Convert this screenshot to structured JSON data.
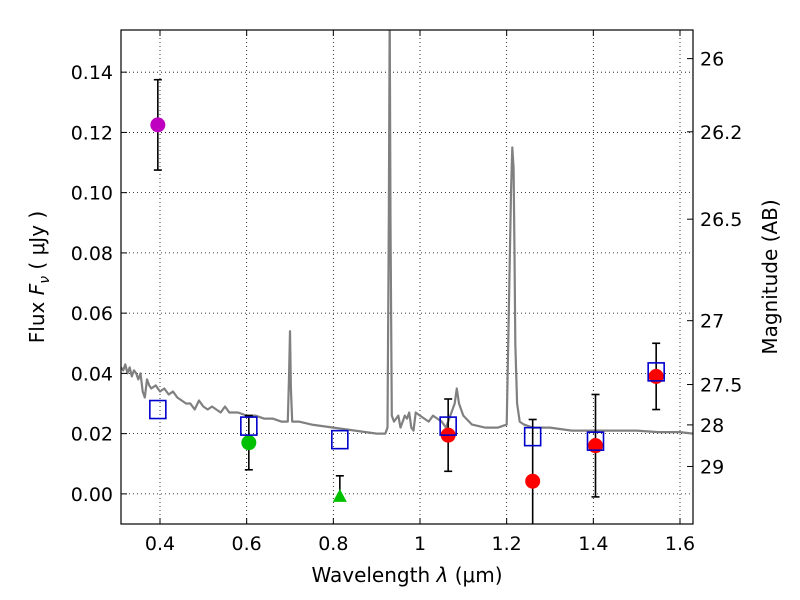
{
  "chart_data": {
    "type": "scatter",
    "xlabel_prefix": "Wavelength",
    "xlabel_symbol": "λ",
    "xlabel_unit": "(μm)",
    "ylabel_prefix": "Flux",
    "ylabel_symbol": "F",
    "ylabel_subscript": "ν",
    "ylabel_unit": "( μJy )",
    "y2label": "Magnitude (AB)",
    "xlim": [
      0.31,
      1.63
    ],
    "ylim": [
      -0.01,
      0.154
    ],
    "grid": true,
    "xticks": [
      {
        "value": 0.4,
        "label": "0.4"
      },
      {
        "value": 0.6,
        "label": "0.6"
      },
      {
        "value": 0.8,
        "label": "0.8"
      },
      {
        "value": 1.0,
        "label": "1"
      },
      {
        "value": 1.2,
        "label": "1.2"
      },
      {
        "value": 1.4,
        "label": "1.4"
      },
      {
        "value": 1.6,
        "label": "1.6"
      }
    ],
    "yticks": [
      {
        "value": 0.0,
        "label": "0.00"
      },
      {
        "value": 0.02,
        "label": "0.02"
      },
      {
        "value": 0.04,
        "label": "0.04"
      },
      {
        "value": 0.06,
        "label": "0.06"
      },
      {
        "value": 0.08,
        "label": "0.08"
      },
      {
        "value": 0.1,
        "label": "0.10"
      },
      {
        "value": 0.12,
        "label": "0.12"
      },
      {
        "value": 0.14,
        "label": "0.14"
      }
    ],
    "y2ticks": [
      {
        "flux": 0.1445,
        "label": "26"
      },
      {
        "flux": 0.1202,
        "label": "26.2"
      },
      {
        "flux": 0.0912,
        "label": "26.5"
      },
      {
        "flux": 0.0575,
        "label": "27"
      },
      {
        "flux": 0.0363,
        "label": "27.5"
      },
      {
        "flux": 0.0229,
        "label": "28"
      },
      {
        "flux": 0.0091,
        "label": "29"
      }
    ],
    "model_spectrum": {
      "name": "model SED",
      "color": "#808080",
      "x": [
        0.31,
        0.315,
        0.32,
        0.325,
        0.33,
        0.335,
        0.34,
        0.345,
        0.35,
        0.355,
        0.36,
        0.365,
        0.37,
        0.375,
        0.38,
        0.39,
        0.4,
        0.41,
        0.42,
        0.43,
        0.44,
        0.45,
        0.46,
        0.47,
        0.48,
        0.49,
        0.5,
        0.51,
        0.52,
        0.53,
        0.54,
        0.55,
        0.56,
        0.58,
        0.6,
        0.62,
        0.64,
        0.66,
        0.68,
        0.695,
        0.698,
        0.7,
        0.702,
        0.705,
        0.72,
        0.75,
        0.8,
        0.85,
        0.9,
        0.92,
        0.925,
        0.928,
        0.93,
        0.932,
        0.935,
        0.94,
        0.95,
        0.955,
        0.96,
        0.965,
        0.97,
        0.975,
        0.98,
        0.985,
        0.99,
        1.0,
        1.01,
        1.02,
        1.03,
        1.04,
        1.05,
        1.06,
        1.07,
        1.08,
        1.085,
        1.09,
        1.1,
        1.12,
        1.15,
        1.18,
        1.2,
        1.205,
        1.21,
        1.213,
        1.216,
        1.218,
        1.22,
        1.224,
        1.23,
        1.24,
        1.26,
        1.3,
        1.35,
        1.4,
        1.45,
        1.5,
        1.55,
        1.6,
        1.63
      ],
      "y": [
        0.042,
        0.041,
        0.043,
        0.04,
        0.042,
        0.039,
        0.041,
        0.04,
        0.038,
        0.04,
        0.034,
        0.032,
        0.038,
        0.036,
        0.035,
        0.036,
        0.034,
        0.035,
        0.033,
        0.034,
        0.032,
        0.031,
        0.03,
        0.03,
        0.028,
        0.031,
        0.029,
        0.028,
        0.029,
        0.028,
        0.027,
        0.029,
        0.027,
        0.027,
        0.026,
        0.026,
        0.025,
        0.025,
        0.024,
        0.024,
        0.04,
        0.054,
        0.035,
        0.024,
        0.024,
        0.023,
        0.022,
        0.021,
        0.02,
        0.02,
        0.022,
        0.09,
        0.16,
        0.09,
        0.026,
        0.024,
        0.026,
        0.022,
        0.024,
        0.026,
        0.025,
        0.027,
        0.022,
        0.021,
        0.027,
        0.026,
        0.025,
        0.024,
        0.026,
        0.025,
        0.024,
        0.022,
        0.026,
        0.03,
        0.035,
        0.03,
        0.026,
        0.023,
        0.022,
        0.022,
        0.023,
        0.06,
        0.1,
        0.115,
        0.108,
        0.08,
        0.05,
        0.03,
        0.024,
        0.023,
        0.022,
        0.022,
        0.021,
        0.021,
        0.021,
        0.021,
        0.0205,
        0.0205,
        0.02
      ]
    },
    "series": [
      {
        "name": "photometry-u",
        "marker": "circle",
        "color": "#c000c0",
        "points": [
          {
            "x": 0.395,
            "y": 0.1225,
            "err": 0.015
          }
        ]
      },
      {
        "name": "photometry-visible",
        "marker": "circle",
        "color": "#00c000",
        "points": [
          {
            "x": 0.605,
            "y": 0.017,
            "err": 0.009
          }
        ]
      },
      {
        "name": "photometry-upper-limit",
        "marker": "triangle",
        "color": "#00c000",
        "points": [
          {
            "x": 0.815,
            "y": -0.0005,
            "err_up": 0.0065,
            "err_down": 0
          }
        ]
      },
      {
        "name": "photometry-nir",
        "marker": "circle",
        "color": "#ff0000",
        "points": [
          {
            "x": 1.065,
            "y": 0.0195,
            "err": 0.012
          },
          {
            "x": 1.26,
            "y": 0.0042,
            "err": 0.0205
          },
          {
            "x": 1.405,
            "y": 0.016,
            "err": 0.017
          },
          {
            "x": 1.545,
            "y": 0.039,
            "err": 0.011
          }
        ]
      },
      {
        "name": "model-band-flux",
        "marker": "square-open",
        "color": "#0000cc",
        "points": [
          {
            "x": 0.395,
            "y": 0.028
          },
          {
            "x": 0.605,
            "y": 0.0225
          },
          {
            "x": 0.815,
            "y": 0.018
          },
          {
            "x": 1.065,
            "y": 0.0225
          },
          {
            "x": 1.26,
            "y": 0.019
          },
          {
            "x": 1.405,
            "y": 0.0175
          },
          {
            "x": 1.545,
            "y": 0.0405
          }
        ]
      }
    ]
  }
}
